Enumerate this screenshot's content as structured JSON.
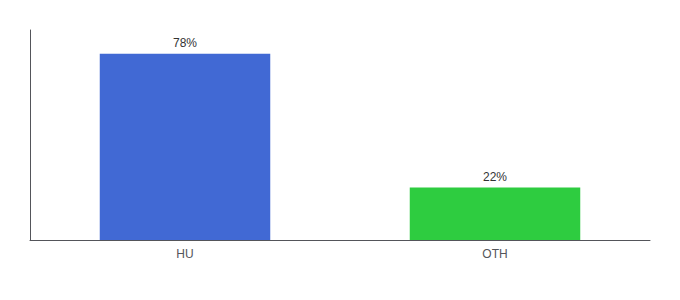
{
  "chart_data": {
    "type": "bar",
    "categories": [
      "HU",
      "OTH"
    ],
    "values": [
      78,
      22
    ],
    "value_labels": [
      "78%",
      "22%"
    ],
    "colors": [
      "#4169d4",
      "#2ecc40"
    ],
    "ylim": [
      0,
      88
    ],
    "data_labels": true,
    "tick_labels": "x",
    "grid": false
  }
}
